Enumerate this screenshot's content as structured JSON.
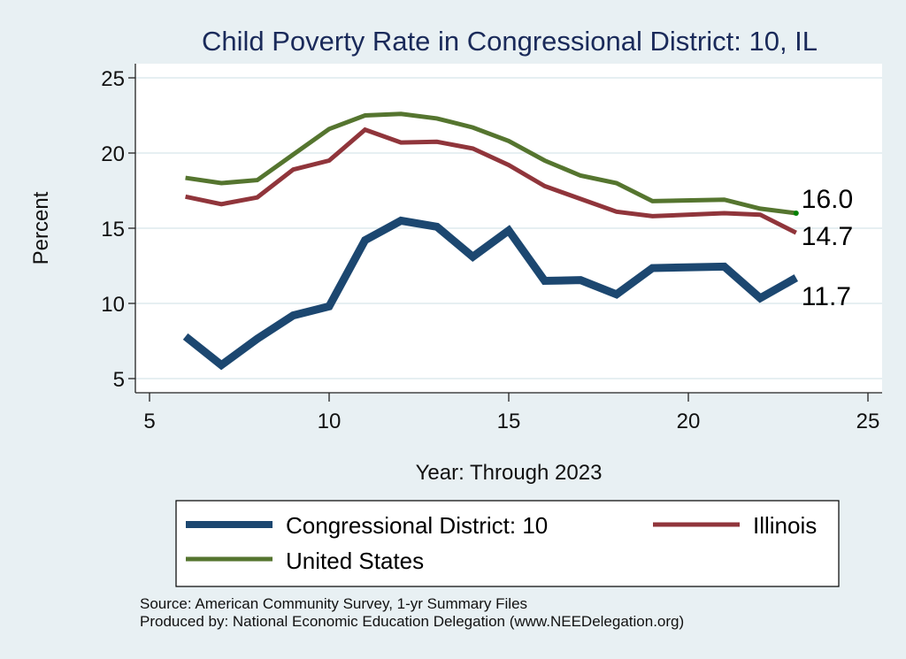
{
  "chart_data": {
    "type": "line",
    "title": "Child Poverty Rate in Congressional District:  10, IL",
    "xlabel": "Year: Through 2023",
    "ylabel": "Percent",
    "xlim": [
      5,
      25
    ],
    "ylim": [
      5,
      25
    ],
    "xticks": [
      5,
      10,
      15,
      20,
      25
    ],
    "yticks": [
      5,
      10,
      15,
      20,
      25
    ],
    "grid": "horizontal",
    "legend_position": "bottom",
    "x": [
      6,
      7,
      8,
      9,
      10,
      11,
      12,
      13,
      14,
      15,
      16,
      17,
      18,
      19,
      21,
      22,
      23
    ],
    "series": [
      {
        "name": "Congressional District:  10",
        "color": "#1c4770",
        "values": [
          7.8,
          5.9,
          7.65,
          9.2,
          9.8,
          14.2,
          15.5,
          15.1,
          13.1,
          14.85,
          11.5,
          11.55,
          10.6,
          12.35,
          12.45,
          10.35,
          11.7
        ],
        "end_label": "11.7"
      },
      {
        "name": "Illinois",
        "color": "#90353b",
        "values": [
          17.1,
          16.6,
          17.05,
          18.9,
          19.5,
          21.55,
          20.7,
          20.75,
          20.3,
          19.2,
          17.8,
          16.95,
          16.1,
          15.8,
          16.0,
          15.9,
          14.7
        ],
        "end_label": "14.7"
      },
      {
        "name": "United States",
        "color": "#55752f",
        "values": [
          18.35,
          18.0,
          18.2,
          19.9,
          21.6,
          22.5,
          22.6,
          22.3,
          21.7,
          20.8,
          19.5,
          18.5,
          18.0,
          16.8,
          16.9,
          16.3,
          16.0
        ],
        "end_label": "16.0"
      }
    ],
    "end_marker_color": "#008000"
  },
  "source": {
    "line1": "Source: American Community Survey, 1-yr Summary Files",
    "line2": "Produced by: National Economic Education Delegation (www.NEEDelegation.org)"
  }
}
